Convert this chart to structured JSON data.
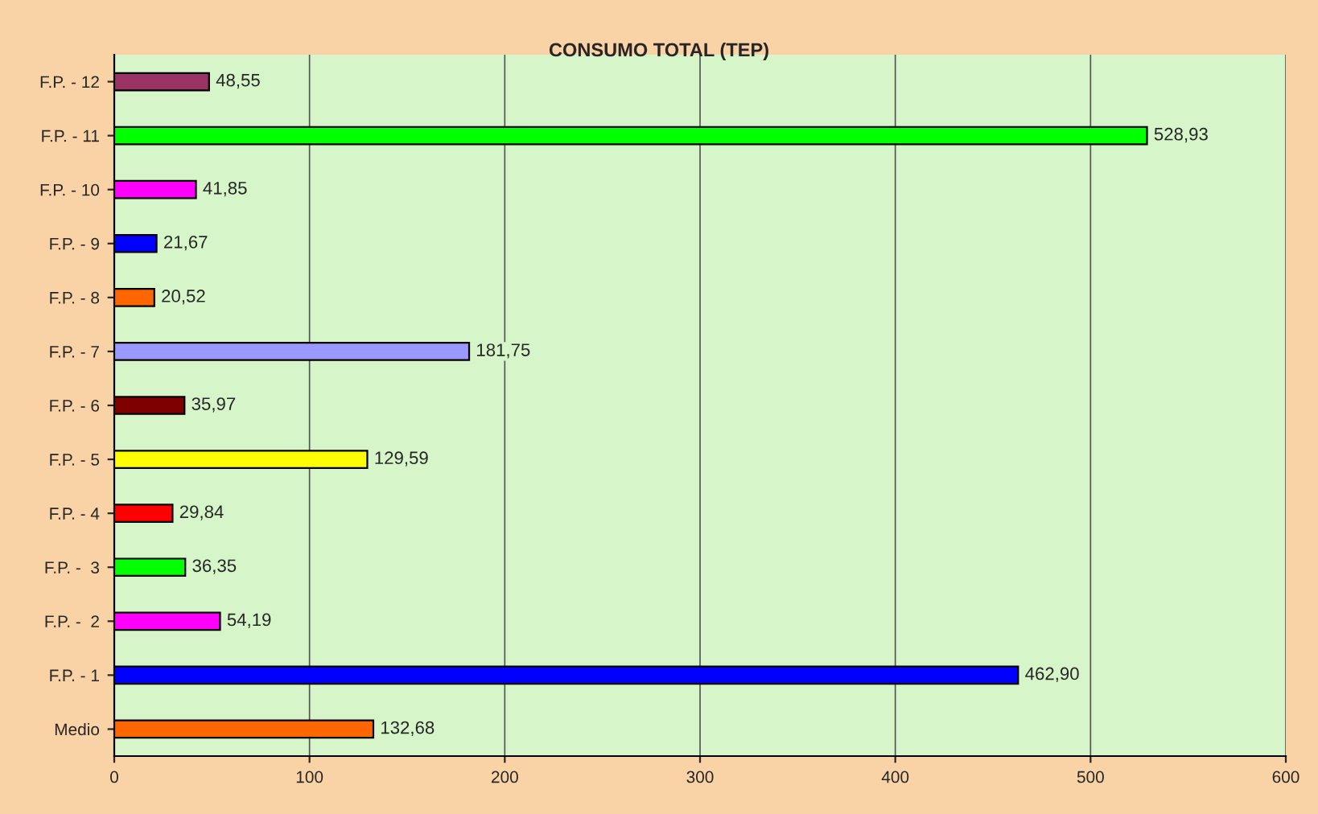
{
  "chart_data": {
    "type": "bar",
    "orientation": "horizontal",
    "title": "CONSUMO TOTAL (TEP)",
    "categories": [
      "F.P. - 12",
      "F.P. - 11",
      "F.P. - 10",
      "F.P. - 9",
      "F.P. - 8",
      "F.P. - 7",
      "F.P. - 6",
      "F.P. - 5",
      "F.P. - 4",
      "F.P. -  3",
      "F.P. -  2",
      "F.P. - 1",
      "Medio"
    ],
    "values": [
      48.55,
      528.93,
      41.85,
      21.67,
      20.52,
      181.75,
      35.97,
      129.59,
      29.84,
      36.35,
      54.19,
      462.9,
      132.68
    ],
    "value_labels": [
      "48,55",
      "528,93",
      "41,85",
      "21,67",
      "20,52",
      "181,75",
      "35,97",
      "129,59",
      "29,84",
      "36,35",
      "54,19",
      "462,90",
      "132,68"
    ],
    "colors": [
      "#993366",
      "#00ff00",
      "#ff00ff",
      "#0000ff",
      "#ff6600",
      "#9999ff",
      "#800000",
      "#ffff00",
      "#ff0000",
      "#00ff00",
      "#ff00ff",
      "#0000ff",
      "#ff6600"
    ],
    "xlim": [
      0,
      600
    ],
    "xticks": [
      0,
      100,
      200,
      300,
      400,
      500,
      600
    ],
    "grid": "x",
    "legend": false
  }
}
